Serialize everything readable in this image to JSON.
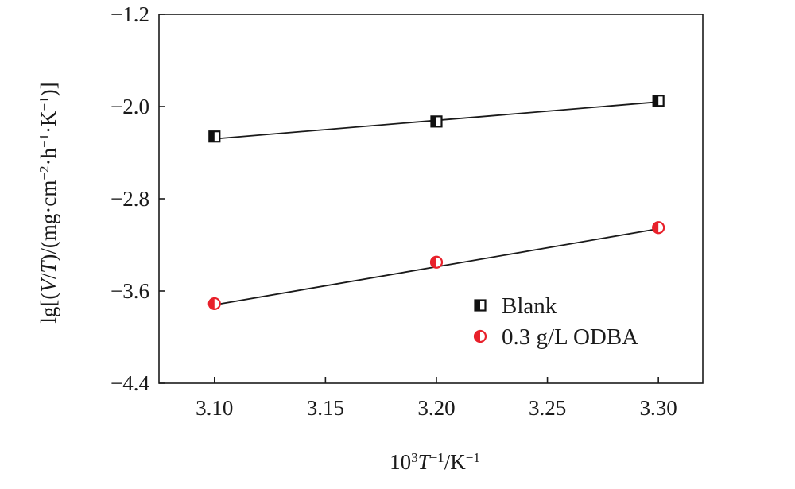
{
  "chart_data": {
    "type": "scatter",
    "title": "",
    "xlabel": {
      "base": "10",
      "sup1": "3",
      "var": "T",
      "sup2": "−1",
      "tail": "/K",
      "sup3": "−1"
    },
    "ylabel": {
      "p1": "lg[(",
      "var1": "V",
      "p2": "/",
      "var2": "T",
      "p3": ")/(mg·cm",
      "sup1": "−2",
      "p4": "·h",
      "sup2": "−1",
      "p5": "·K",
      "sup3": "−1",
      "p6": ")]"
    },
    "xlim": [
      3.075,
      3.32
    ],
    "ylim": [
      -4.4,
      -1.2
    ],
    "xticks": [
      3.1,
      3.15,
      3.2,
      3.25,
      3.3
    ],
    "xtick_labels": [
      "3.10",
      "3.15",
      "3.20",
      "3.25",
      "3.30"
    ],
    "yticks": [
      -1.2,
      -2.0,
      -2.8,
      -3.6,
      -4.4
    ],
    "ytick_labels": [
      "−1.2",
      "−2.0",
      "−2.8",
      "−3.6",
      "−4.4"
    ],
    "grid": false,
    "legend_position": "bottom-right",
    "series": [
      {
        "name": "Blank",
        "marker": "half-filled-square",
        "color": "#111111",
        "x": [
          3.1,
          3.2,
          3.3
        ],
        "y": [
          -2.26,
          -2.13,
          -1.95
        ],
        "fit": {
          "x": [
            3.1,
            3.3
          ],
          "y": [
            -2.28,
            -1.96
          ]
        }
      },
      {
        "name": "0.3 g/L ODBA",
        "marker": "half-filled-circle",
        "color": "#e8212b",
        "x": [
          3.1,
          3.2,
          3.3
        ],
        "y": [
          -3.71,
          -3.35,
          -3.05
        ],
        "fit": {
          "x": [
            3.1,
            3.3
          ],
          "y": [
            -3.72,
            -3.06
          ]
        }
      }
    ]
  }
}
